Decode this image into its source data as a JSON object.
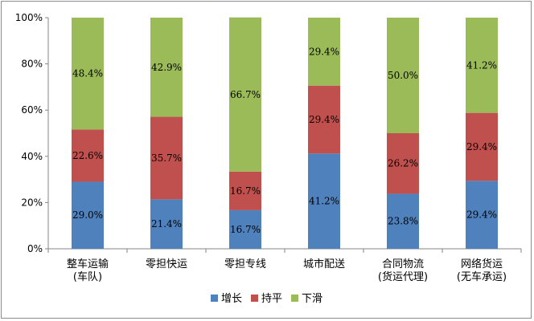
{
  "chart_data": {
    "type": "bar",
    "stacked": true,
    "percent": true,
    "categories": [
      [
        "整车运输",
        "(车队)"
      ],
      [
        "零担快运"
      ],
      [
        "零担专线"
      ],
      [
        "城市配送"
      ],
      [
        "合同物流",
        "(货运代理)"
      ],
      [
        "网络货运",
        "(无车承运)"
      ]
    ],
    "series": [
      {
        "name": "增长",
        "color": "#4f81bd",
        "values": [
          29.0,
          21.4,
          16.7,
          41.2,
          23.8,
          29.4
        ]
      },
      {
        "name": "持平",
        "color": "#c0504d",
        "values": [
          22.6,
          35.7,
          16.7,
          29.4,
          26.2,
          29.4
        ]
      },
      {
        "name": "下滑",
        "color": "#9bbb59",
        "values": [
          48.4,
          42.9,
          66.7,
          29.4,
          50.0,
          41.2
        ]
      }
    ],
    "y_ticks": [
      "0%",
      "20%",
      "40%",
      "60%",
      "80%",
      "100%"
    ],
    "ylim": [
      0,
      100
    ],
    "grid": false,
    "legend_position": "bottom"
  }
}
